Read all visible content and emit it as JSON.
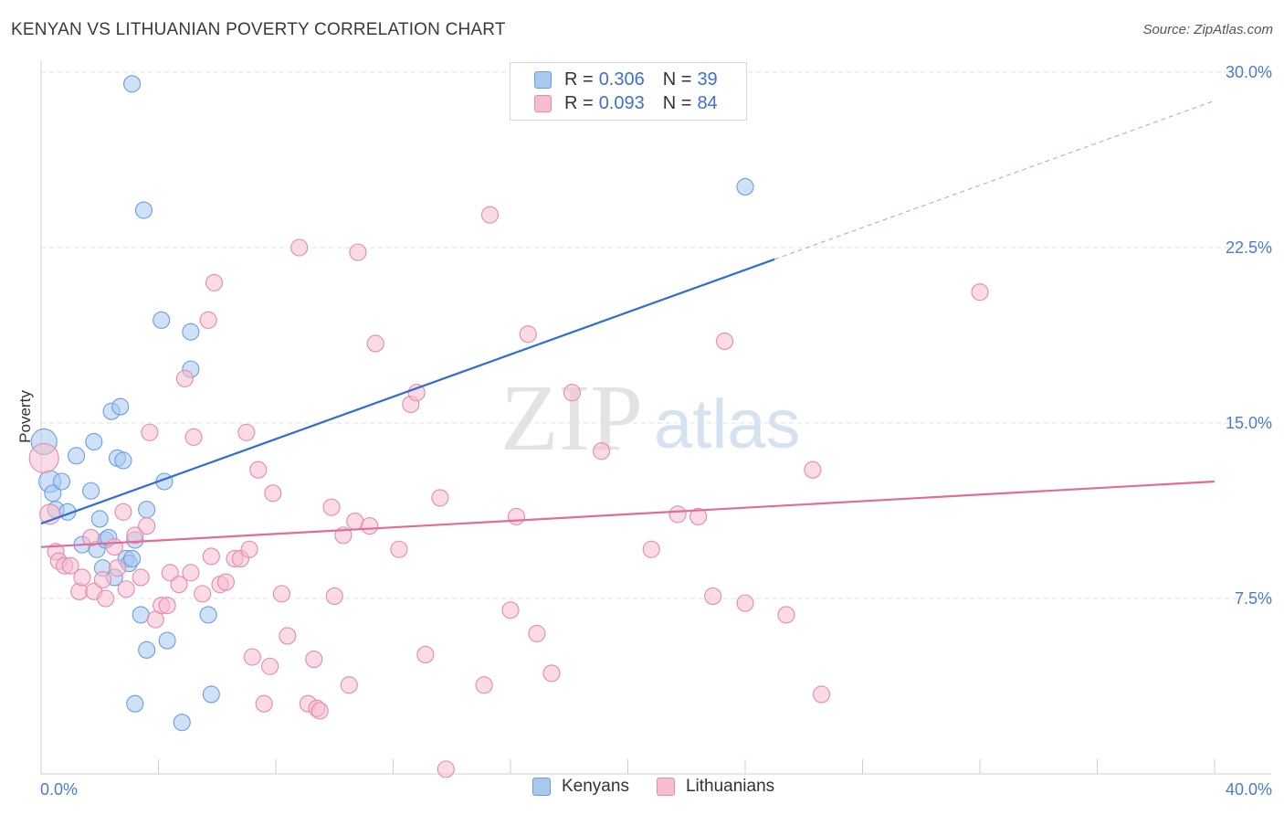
{
  "header": {
    "title": "KENYAN VS LITHUANIAN POVERTY CORRELATION CHART",
    "source": "Source: ZipAtlas.com"
  },
  "watermark": {
    "zip": "ZIP",
    "atlas": "atlas"
  },
  "legend": {
    "items": [
      {
        "r_label": "R =",
        "r_value": "0.306",
        "n_label": "N =",
        "n_value": "39",
        "color": "#a8c8f0",
        "border": "#6a9ee0"
      },
      {
        "r_label": "R =",
        "r_value": "0.093",
        "n_label": "N =",
        "n_value": "84",
        "color": "#f6bcd0",
        "border": "#e48aac"
      }
    ],
    "bottom": [
      "Kenyans",
      "Lithuanians"
    ]
  },
  "chart_data": {
    "type": "scatter",
    "title": "KENYAN VS LITHUANIAN POVERTY CORRELATION CHART",
    "xlabel": "",
    "ylabel": "Poverty",
    "xlim": [
      0,
      40
    ],
    "ylim": [
      0,
      30
    ],
    "x_tick_labels": [
      "0.0%",
      "40.0%"
    ],
    "y_ticks": [
      7.5,
      15.0,
      22.5,
      30.0
    ],
    "y_tick_labels": [
      "7.5%",
      "15.0%",
      "22.5%",
      "30.0%"
    ],
    "grid": "horizontal dashed",
    "series": [
      {
        "name": "Kenyans",
        "color": "#6a9ee0",
        "fill": "#a8c8f0",
        "trend": {
          "x": [
            0,
            25
          ],
          "y": [
            10.7,
            22.0
          ],
          "extend_dashed_to_x": 40,
          "color": "#2f6fd0"
        },
        "points": [
          [
            0.1,
            14.2,
            14
          ],
          [
            0.3,
            12.5,
            12
          ],
          [
            0.4,
            12.0,
            9
          ],
          [
            0.5,
            11.3,
            9
          ],
          [
            0.7,
            12.5,
            9
          ],
          [
            0.9,
            11.2,
            9
          ],
          [
            1.2,
            13.6,
            9
          ],
          [
            1.4,
            9.8,
            9
          ],
          [
            1.7,
            12.1,
            9
          ],
          [
            1.8,
            14.2,
            9
          ],
          [
            1.9,
            9.6,
            9
          ],
          [
            2.0,
            10.9,
            9
          ],
          [
            2.1,
            8.8,
            9
          ],
          [
            2.2,
            10.0,
            9
          ],
          [
            2.3,
            10.1,
            9
          ],
          [
            2.4,
            15.5,
            9
          ],
          [
            2.5,
            8.4,
            9
          ],
          [
            2.6,
            13.5,
            9
          ],
          [
            2.7,
            15.7,
            9
          ],
          [
            2.8,
            13.4,
            9
          ],
          [
            2.9,
            9.2,
            9
          ],
          [
            3.0,
            9.0,
            9
          ],
          [
            3.1,
            9.2,
            9
          ],
          [
            3.1,
            29.5,
            9
          ],
          [
            3.2,
            10.0,
            9
          ],
          [
            3.2,
            3.0,
            9
          ],
          [
            3.4,
            6.8,
            9
          ],
          [
            3.5,
            24.1,
            9
          ],
          [
            3.6,
            11.3,
            9
          ],
          [
            3.6,
            5.3,
            9
          ],
          [
            4.1,
            19.4,
            9
          ],
          [
            4.2,
            12.5,
            9
          ],
          [
            4.3,
            5.7,
            9
          ],
          [
            4.8,
            2.2,
            9
          ],
          [
            5.1,
            17.3,
            9
          ],
          [
            5.1,
            18.9,
            9
          ],
          [
            5.7,
            6.8,
            9
          ],
          [
            5.8,
            3.4,
            9
          ],
          [
            24.0,
            25.1,
            9
          ]
        ]
      },
      {
        "name": "Lithuanians",
        "color": "#e48aac",
        "fill": "#f6bcd0",
        "trend": {
          "x": [
            0,
            40
          ],
          "y": [
            9.7,
            12.5
          ],
          "color": "#e06c98"
        },
        "points": [
          [
            0.1,
            13.5,
            16
          ],
          [
            0.3,
            11.1,
            11
          ],
          [
            0.5,
            9.5,
            9
          ],
          [
            0.6,
            9.1,
            9
          ],
          [
            0.8,
            8.9,
            9
          ],
          [
            1.0,
            8.9,
            9
          ],
          [
            1.3,
            7.8,
            9
          ],
          [
            1.4,
            8.4,
            9
          ],
          [
            1.7,
            10.1,
            9
          ],
          [
            1.8,
            7.8,
            9
          ],
          [
            2.1,
            8.3,
            9
          ],
          [
            2.2,
            7.5,
            9
          ],
          [
            2.5,
            9.7,
            9
          ],
          [
            2.6,
            8.8,
            9
          ],
          [
            2.8,
            11.2,
            9
          ],
          [
            2.9,
            7.9,
            9
          ],
          [
            3.2,
            10.2,
            9
          ],
          [
            3.4,
            8.4,
            9
          ],
          [
            3.6,
            10.6,
            9
          ],
          [
            3.7,
            14.6,
            9
          ],
          [
            3.9,
            6.6,
            9
          ],
          [
            4.1,
            7.2,
            9
          ],
          [
            4.3,
            7.2,
            9
          ],
          [
            4.4,
            8.6,
            9
          ],
          [
            4.7,
            8.1,
            9
          ],
          [
            4.9,
            16.9,
            9
          ],
          [
            5.1,
            8.6,
            9
          ],
          [
            5.2,
            14.4,
            9
          ],
          [
            5.5,
            7.7,
            9
          ],
          [
            5.7,
            19.4,
            9
          ],
          [
            5.8,
            9.3,
            9
          ],
          [
            5.9,
            21.0,
            9
          ],
          [
            6.1,
            8.1,
            9
          ],
          [
            6.3,
            8.2,
            9
          ],
          [
            6.6,
            9.2,
            9
          ],
          [
            6.8,
            9.2,
            9
          ],
          [
            7.0,
            14.6,
            9
          ],
          [
            7.1,
            9.6,
            9
          ],
          [
            7.2,
            5.0,
            9
          ],
          [
            7.4,
            13.0,
            9
          ],
          [
            7.6,
            3.0,
            9
          ],
          [
            7.8,
            4.6,
            9
          ],
          [
            7.9,
            12.0,
            9
          ],
          [
            8.2,
            7.7,
            9
          ],
          [
            8.4,
            5.9,
            9
          ],
          [
            8.8,
            22.5,
            9
          ],
          [
            9.1,
            3.0,
            9
          ],
          [
            9.3,
            4.9,
            9
          ],
          [
            9.4,
            2.8,
            9
          ],
          [
            9.5,
            2.7,
            9
          ],
          [
            9.9,
            11.4,
            9
          ],
          [
            10.0,
            7.6,
            9
          ],
          [
            10.3,
            10.2,
            9
          ],
          [
            10.5,
            3.8,
            9
          ],
          [
            10.7,
            10.8,
            9
          ],
          [
            10.8,
            22.3,
            9
          ],
          [
            11.2,
            10.6,
            9
          ],
          [
            11.4,
            18.4,
            9
          ],
          [
            12.2,
            9.6,
            9
          ],
          [
            12.6,
            15.8,
            9
          ],
          [
            12.8,
            16.3,
            9
          ],
          [
            13.1,
            5.1,
            9
          ],
          [
            13.6,
            11.8,
            9
          ],
          [
            13.8,
            0.2,
            9
          ],
          [
            15.1,
            3.8,
            9
          ],
          [
            15.3,
            23.9,
            9
          ],
          [
            16.0,
            7.0,
            9
          ],
          [
            16.2,
            11.0,
            9
          ],
          [
            16.6,
            18.8,
            9
          ],
          [
            16.9,
            6.0,
            9
          ],
          [
            17.4,
            4.3,
            9
          ],
          [
            18.1,
            16.3,
            9
          ],
          [
            19.1,
            13.8,
            9
          ],
          [
            20.8,
            9.6,
            9
          ],
          [
            21.0,
            29.6,
            9
          ],
          [
            21.7,
            11.1,
            9
          ],
          [
            22.4,
            11.0,
            9
          ],
          [
            22.9,
            7.6,
            9
          ],
          [
            23.3,
            18.5,
            9
          ],
          [
            24.0,
            7.3,
            9
          ],
          [
            25.4,
            6.8,
            9
          ],
          [
            26.3,
            13.0,
            9
          ],
          [
            26.6,
            3.4,
            9
          ],
          [
            32.0,
            20.6,
            9
          ]
        ]
      }
    ]
  }
}
